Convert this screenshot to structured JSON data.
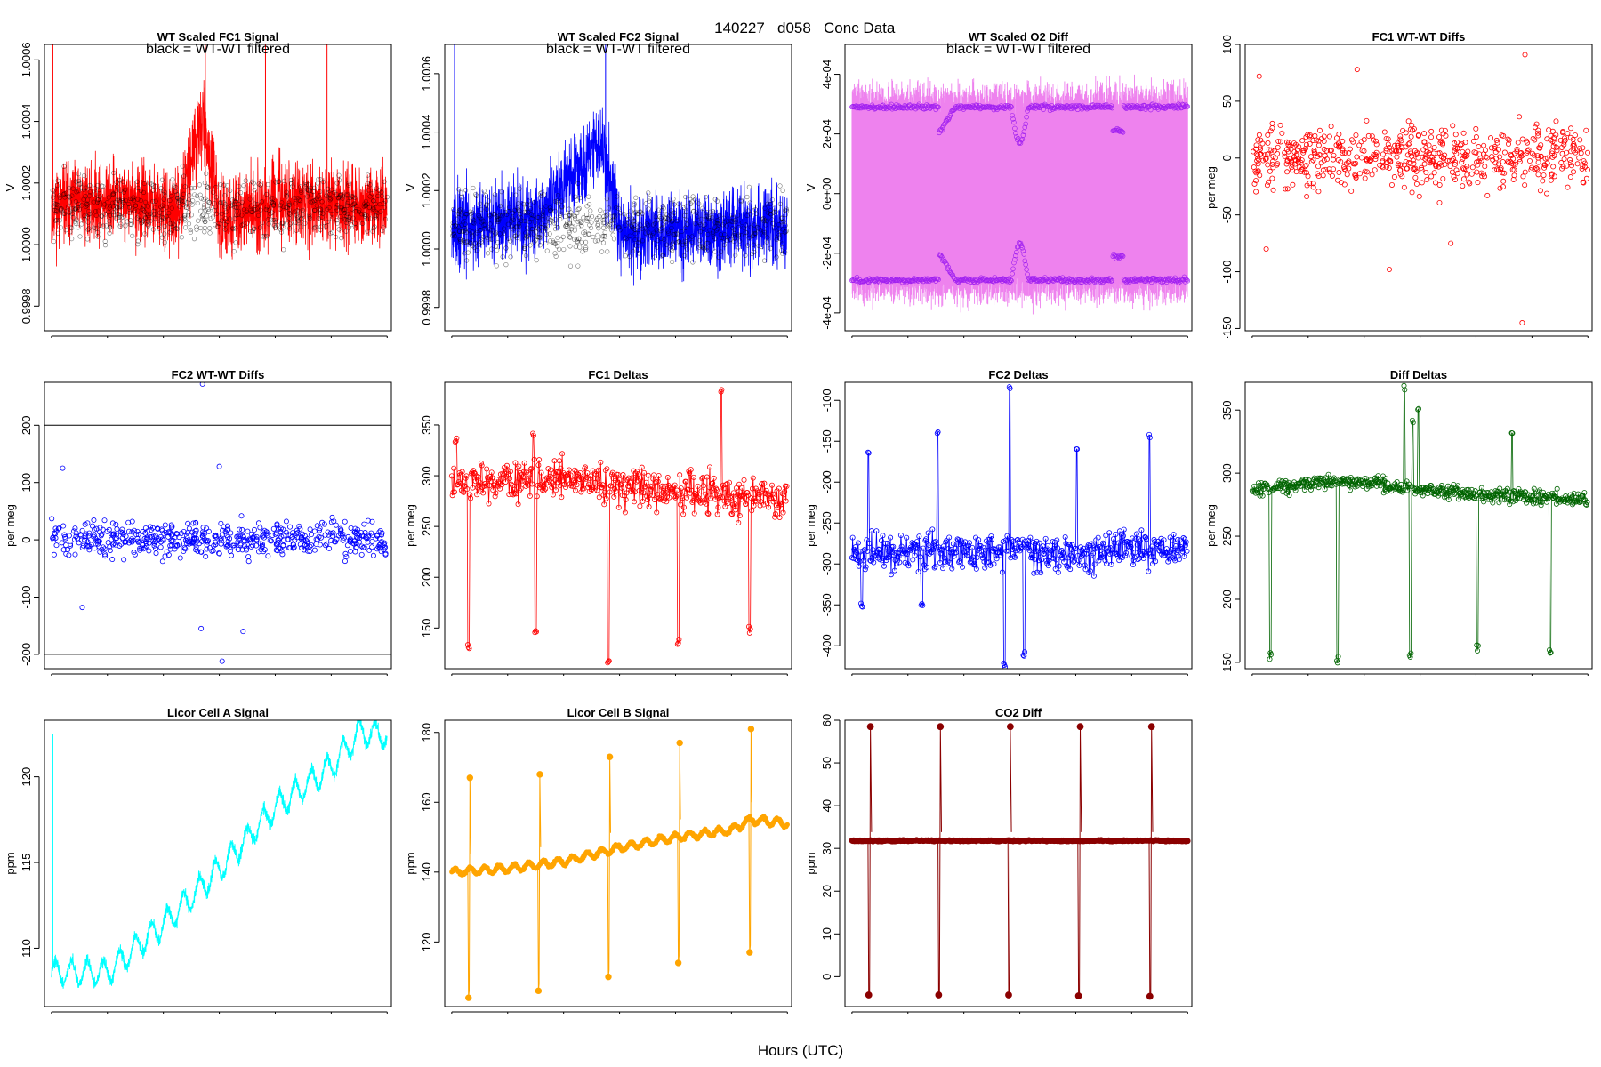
{
  "page": {
    "title_parts": [
      "140227",
      "d058",
      "Conc Data"
    ],
    "x_axis_caption": "Hours (UTC)"
  },
  "chart_data": [
    {
      "id": "p1",
      "type": "line",
      "title": "WT Scaled FC1 Signal",
      "annotation": "black = WT-WT filtered",
      "ylabel": "V",
      "ylim": [
        0.99972,
        1.00065
      ],
      "yticks": [
        0.9998,
        1.0,
        1.0002,
        1.0004,
        1.0006
      ],
      "ytick_labels": [
        "0.9998",
        "1.0000",
        "1.0002",
        "1.0004",
        "1.0006"
      ],
      "xlim": [
        -0.5,
        24.3
      ],
      "xticks": [
        0,
        4,
        8,
        12,
        16,
        20,
        24
      ],
      "series": [
        {
          "name": "signal",
          "color": "#ff0000",
          "kind": "noise",
          "seed": 11,
          "base": 1.00012,
          "amp": 0.00013,
          "curve": [
            [
              0,
              0
            ],
            [
              5,
              3e-05
            ],
            [
              9,
              -2e-05
            ],
            [
              10.8,
              0.0003
            ],
            [
              12,
              -4e-05
            ],
            [
              16,
              2e-05
            ],
            [
              24,
              0
            ]
          ],
          "spikes": [
            [
              0.1,
              1.00065
            ],
            [
              11.0,
              1.00065
            ],
            [
              15.3,
              1.00065
            ],
            [
              19.7,
              1.00065
            ]
          ]
        },
        {
          "name": "WT-WT filtered",
          "color": "#000000",
          "kind": "points",
          "seed": 12,
          "base": 1.00012,
          "amp": 0.0001
        }
      ]
    },
    {
      "id": "p2",
      "type": "line",
      "title": "WT Scaled FC2 Signal",
      "annotation": "black = WT-WT filtered",
      "ylabel": "V",
      "ylim": [
        0.99972,
        1.0007
      ],
      "yticks": [
        0.9998,
        1.0,
        1.0002,
        1.0004,
        1.0006
      ],
      "ytick_labels": [
        "0.9998",
        "1.0000",
        "1.0002",
        "1.0004",
        "1.0006"
      ],
      "xlim": [
        -0.5,
        24.3
      ],
      "xticks": [
        0,
        4,
        8,
        12,
        16,
        20,
        24
      ],
      "series": [
        {
          "name": "signal",
          "color": "#0000ff",
          "kind": "noise",
          "seed": 21,
          "base": 1.00008,
          "amp": 0.00014,
          "curve": [
            [
              0,
              0
            ],
            [
              6,
              2e-05
            ],
            [
              10.8,
              0.00028
            ],
            [
              12,
              -3e-05
            ],
            [
              24,
              0
            ]
          ],
          "spikes": [
            [
              0.2,
              1.0007
            ],
            [
              11.0,
              1.0007
            ]
          ]
        },
        {
          "name": "WT-WT filtered",
          "color": "#000000",
          "kind": "points",
          "seed": 22,
          "base": 1.00008,
          "amp": 0.00011
        }
      ]
    },
    {
      "id": "p3",
      "type": "line",
      "title": "WT Scaled O2 Diff",
      "annotation": "black = WT-WT filtered",
      "ylabel": "V",
      "ylim": [
        -0.00046,
        0.0005
      ],
      "yticks": [
        -0.0004,
        -0.0002,
        0,
        0.0002,
        0.0004
      ],
      "ytick_labels": [
        "-4e-04",
        "-2e-04",
        "0e+00",
        "2e-04",
        "4e-04"
      ],
      "xlim": [
        -0.5,
        24.3
      ],
      "xticks": [
        0,
        4,
        8,
        12,
        16,
        20,
        24
      ],
      "series": [
        {
          "name": "diff",
          "color": "#ee82ee",
          "kind": "band",
          "seed": 31,
          "hi": 0.00032,
          "lo": -0.00032,
          "amp": 6e-05
        },
        {
          "name": "upper",
          "color": "#a020f0",
          "kind": "track",
          "seed": 32,
          "base": 0.00029,
          "amp": 8e-06
        },
        {
          "name": "lower",
          "color": "#a020f0",
          "kind": "track",
          "seed": 33,
          "base": -0.00029,
          "amp": 8e-06
        }
      ]
    },
    {
      "id": "p4",
      "type": "scatter",
      "title": "FC1 WT-WT Diffs",
      "ylabel": "per meg",
      "ylim": [
        -152,
        100
      ],
      "yticks": [
        -150,
        -100,
        -50,
        0,
        50,
        100
      ],
      "ytick_labels": [
        "-150",
        "-100",
        "-50",
        "0",
        "50",
        "100"
      ],
      "xlim": [
        -0.5,
        24.3
      ],
      "xticks": [
        0,
        4,
        8,
        12,
        16,
        20,
        24
      ],
      "series": [
        {
          "name": "diffs",
          "color": "#ff0000",
          "kind": "scatter",
          "seed": 41,
          "n": 620,
          "center": 0,
          "spread": 27,
          "outliers": [
            [
              19.5,
              91
            ],
            [
              0.5,
              72
            ],
            [
              1.0,
              -80
            ],
            [
              9.8,
              -98
            ],
            [
              19.3,
              -145
            ],
            [
              7.5,
              78
            ],
            [
              14.2,
              -75
            ]
          ]
        }
      ]
    },
    {
      "id": "p5",
      "type": "scatter",
      "title": "FC2 WT-WT Diffs",
      "ylabel": "per meg",
      "ylim": [
        -225,
        275
      ],
      "yticks": [
        -200,
        -100,
        0,
        100,
        200
      ],
      "ytick_labels": [
        "-200",
        "-100",
        "0",
        "100",
        "200"
      ],
      "xlim": [
        -0.5,
        24.3
      ],
      "xticks": [
        0,
        4,
        8,
        12,
        16,
        20,
        24
      ],
      "hlines": [
        200,
        -200
      ],
      "series": [
        {
          "name": "diffs",
          "color": "#0000ff",
          "kind": "scatter",
          "seed": 51,
          "n": 560,
          "center": 0,
          "spread": 30,
          "outliers": [
            [
              10.8,
              272
            ],
            [
              12.2,
              -212
            ],
            [
              0.8,
              125
            ],
            [
              12.0,
              128
            ],
            [
              2.2,
              -118
            ],
            [
              13.7,
              -160
            ],
            [
              10.7,
              -155
            ]
          ]
        }
      ]
    },
    {
      "id": "p6",
      "type": "line",
      "title": "FC1 Deltas",
      "ylabel": "per meg",
      "ylim": [
        110,
        392
      ],
      "yticks": [
        150,
        200,
        250,
        300,
        350
      ],
      "ytick_labels": [
        "150",
        "200",
        "250",
        "300",
        "350"
      ],
      "xlim": [
        -0.5,
        24.3
      ],
      "xticks": [
        0,
        4,
        8,
        12,
        16,
        20,
        24
      ],
      "series": [
        {
          "name": "deltas",
          "color": "#ff0000",
          "kind": "deltas",
          "seed": 61,
          "base": 290,
          "amp": 20,
          "trend": [
            [
              0,
              290
            ],
            [
              8,
              298
            ],
            [
              16,
              283
            ],
            [
              24,
              278
            ]
          ],
          "dips": [
            [
              1.2,
              130
            ],
            [
              6.0,
              148
            ],
            [
              11.2,
              118
            ],
            [
              16.2,
              136
            ],
            [
              21.3,
              150
            ]
          ],
          "peaks": [
            [
              19.3,
              383
            ],
            [
              0.3,
              335
            ],
            [
              5.8,
              340
            ]
          ]
        }
      ]
    },
    {
      "id": "p7",
      "type": "line",
      "title": "FC2 Deltas",
      "ylabel": "per meg",
      "ylim": [
        -428,
        -78
      ],
      "yticks": [
        -400,
        -350,
        -300,
        -250,
        -200,
        -150,
        -100
      ],
      "ytick_labels": [
        "-400",
        "-350",
        "-300",
        "-250",
        "-200",
        "-150",
        "-100"
      ],
      "xlim": [
        -0.5,
        24.3
      ],
      "xticks": [
        0,
        4,
        8,
        12,
        16,
        20,
        24
      ],
      "series": [
        {
          "name": "deltas",
          "color": "#0000ff",
          "kind": "deltas",
          "seed": 71,
          "base": -287,
          "amp": 22,
          "trend": [
            [
              0,
              -287
            ],
            [
              12,
              -285
            ],
            [
              24,
              -283
            ]
          ],
          "peaks": [
            [
              1.2,
              -165
            ],
            [
              6.1,
              -140
            ],
            [
              11.3,
              -85
            ],
            [
              16.1,
              -160
            ],
            [
              21.3,
              -145
            ]
          ],
          "dips": [
            [
              10.9,
              -422
            ],
            [
              0.7,
              -350
            ],
            [
              12.3,
              -410
            ],
            [
              5.0,
              -350
            ]
          ]
        }
      ]
    },
    {
      "id": "p8",
      "type": "line",
      "title": "Diff Deltas",
      "ylabel": "per meg",
      "ylim": [
        145,
        372
      ],
      "yticks": [
        150,
        200,
        250,
        300,
        350
      ],
      "ytick_labels": [
        "150",
        "200",
        "250",
        "300",
        "350"
      ],
      "xlim": [
        -0.5,
        24.3
      ],
      "xticks": [
        0,
        4,
        8,
        12,
        16,
        20,
        24
      ],
      "series": [
        {
          "name": "deltas",
          "color": "#006400",
          "kind": "deltas",
          "seed": 81,
          "base": 288,
          "amp": 6,
          "trend": [
            [
              0,
              287
            ],
            [
              6,
              294
            ],
            [
              8,
              292
            ],
            [
              16,
              283
            ],
            [
              24,
              279
            ]
          ],
          "dips": [
            [
              1.3,
              155
            ],
            [
              6.1,
              153
            ],
            [
              11.3,
              157
            ],
            [
              16.1,
              163
            ],
            [
              21.3,
              157
            ]
          ],
          "peaks": [
            [
              10.9,
              367
            ],
            [
              11.9,
              352
            ],
            [
              18.6,
              330
            ],
            [
              11.5,
              340
            ]
          ]
        }
      ]
    },
    {
      "id": "p9",
      "type": "line",
      "title": "Licor Cell A Signal",
      "ylabel": "ppm",
      "ylim": [
        106.6,
        123.3
      ],
      "yticks": [
        110,
        115,
        120
      ],
      "ytick_labels": [
        "110",
        "115",
        "120"
      ],
      "xlim": [
        -0.5,
        24.3
      ],
      "xticks": [
        0,
        4,
        8,
        12,
        16,
        20,
        24
      ],
      "series": [
        {
          "name": "cell A",
          "color": "#00ffff",
          "kind": "licorA",
          "seed": 91,
          "trend": [
            [
              0,
              108.6
            ],
            [
              4,
              108.6
            ],
            [
              8,
              111.4
            ],
            [
              12,
              114.6
            ],
            [
              16,
              118.2
            ],
            [
              20,
              120.6
            ],
            [
              22,
              122.6
            ],
            [
              24,
              122.4
            ]
          ],
          "spikes": [
            [
              0.1,
              122.5
            ]
          ]
        }
      ]
    },
    {
      "id": "p10",
      "type": "line",
      "title": "Licor Cell B Signal",
      "ylabel": "ppm",
      "ylim": [
        101.5,
        183.5
      ],
      "yticks": [
        120,
        140,
        160,
        180
      ],
      "ytick_labels": [
        "120",
        "140",
        "160",
        "180"
      ],
      "xlim": [
        -0.5,
        24.3
      ],
      "xticks": [
        0,
        4,
        8,
        12,
        16,
        20,
        24
      ],
      "series": [
        {
          "name": "cell B",
          "color": "#ffa500",
          "kind": "licorB",
          "seed": 101,
          "trend": [
            [
              0,
              140
            ],
            [
              4,
              141
            ],
            [
              8,
              143
            ],
            [
              12,
              147
            ],
            [
              16,
              150
            ],
            [
              20,
              152
            ],
            [
              21.3,
              155
            ],
            [
              24,
              154
            ]
          ],
          "events": [
            [
              1.2,
              104,
              167
            ],
            [
              6.2,
              106,
              168
            ],
            [
              11.2,
              110,
              173
            ],
            [
              16.2,
              114,
              177
            ],
            [
              21.3,
              117,
              181
            ]
          ]
        }
      ]
    },
    {
      "id": "p11",
      "type": "line",
      "title": "CO2 Diff",
      "ylabel": "ppm",
      "ylim": [
        -7,
        60
      ],
      "yticks": [
        0,
        10,
        20,
        30,
        40,
        50,
        60
      ],
      "ytick_labels": [
        "0",
        "10",
        "20",
        "30",
        "40",
        "50",
        "60"
      ],
      "xlim": [
        -0.5,
        24.3
      ],
      "xticks": [
        0,
        4,
        8,
        12,
        16,
        20,
        24
      ],
      "series": [
        {
          "name": "diff",
          "color": "#8b0000",
          "kind": "co2",
          "seed": 111,
          "base": 31.8,
          "events": [
            [
              1.2,
              -4.3,
              58.5
            ],
            [
              6.2,
              -4.3,
              58.5
            ],
            [
              11.2,
              -4.3,
              58.5
            ],
            [
              16.2,
              -4.5,
              58.5
            ],
            [
              21.3,
              -4.6,
              58.5
            ]
          ]
        }
      ]
    }
  ]
}
